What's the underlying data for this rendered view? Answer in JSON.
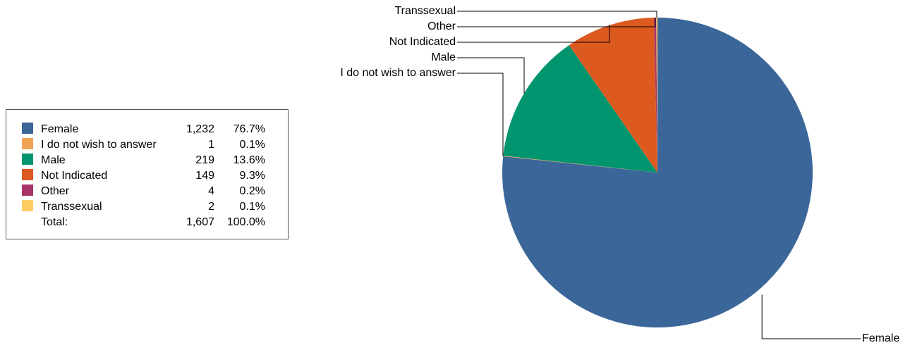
{
  "chart_data": {
    "type": "pie",
    "slices": [
      {
        "label": "Female",
        "count": "1,232",
        "value": 1232,
        "percent": "76.7%",
        "color": "#3b6699"
      },
      {
        "label": "I do not wish to answer",
        "count": "1",
        "value": 1,
        "percent": "0.1%",
        "color": "#f0a255"
      },
      {
        "label": "Male",
        "count": "219",
        "value": 219,
        "percent": "13.6%",
        "color": "#00956f"
      },
      {
        "label": "Not Indicated",
        "count": "149",
        "value": 149,
        "percent": "9.3%",
        "color": "#dc5a20"
      },
      {
        "label": "Other",
        "count": "4",
        "value": 4,
        "percent": "0.2%",
        "color": "#a8346a"
      },
      {
        "label": "Transsexual",
        "count": "2",
        "value": 2,
        "percent": "0.1%",
        "color": "#fdcc63"
      }
    ],
    "total_label": "Total:",
    "total_count": "1,607",
    "total_percent": "100.0%",
    "legend_position": "left"
  }
}
